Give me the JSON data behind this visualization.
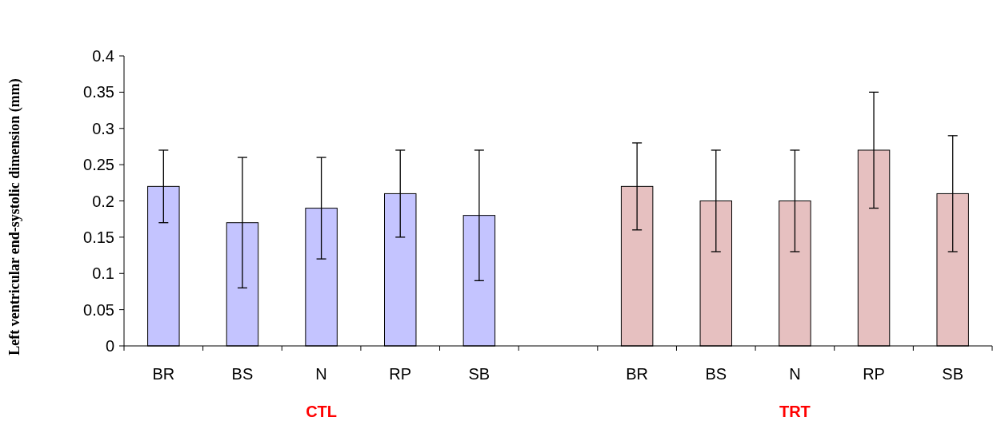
{
  "chart_data": {
    "type": "bar",
    "ylabel": "Left ventricular end-systolic dimension (mm)",
    "categories": [
      "BR",
      "BS",
      "N",
      "RP",
      "SB",
      null,
      "BR",
      "BS",
      "N",
      "RP",
      "SB"
    ],
    "values": [
      0.22,
      0.17,
      0.19,
      0.21,
      0.18,
      null,
      0.22,
      0.2,
      0.2,
      0.27,
      0.21
    ],
    "colors": [
      "#c4c4ff",
      "#c4c4ff",
      "#c4c4ff",
      "#c4c4ff",
      "#c4c4ff",
      null,
      "#e6c0c0",
      "#e6c0c0",
      "#e6c0c0",
      "#e6c0c0",
      "#e6c0c0"
    ],
    "errors": [
      [
        0.17,
        0.27
      ],
      [
        0.08,
        0.26
      ],
      [
        0.12,
        0.26
      ],
      [
        0.15,
        0.27
      ],
      [
        0.09,
        0.27
      ],
      null,
      [
        0.16,
        0.28
      ],
      [
        0.13,
        0.27
      ],
      [
        0.13,
        0.27
      ],
      [
        0.19,
        0.35
      ],
      [
        0.13,
        0.29
      ]
    ],
    "annotations": [
      "CTL",
      "TRT"
    ],
    "ylim": [
      0,
      0.4
    ],
    "yticks": [
      0,
      0.05,
      0.1,
      0.15,
      0.2,
      0.25,
      0.3,
      0.35,
      0.4
    ],
    "grid": false
  }
}
